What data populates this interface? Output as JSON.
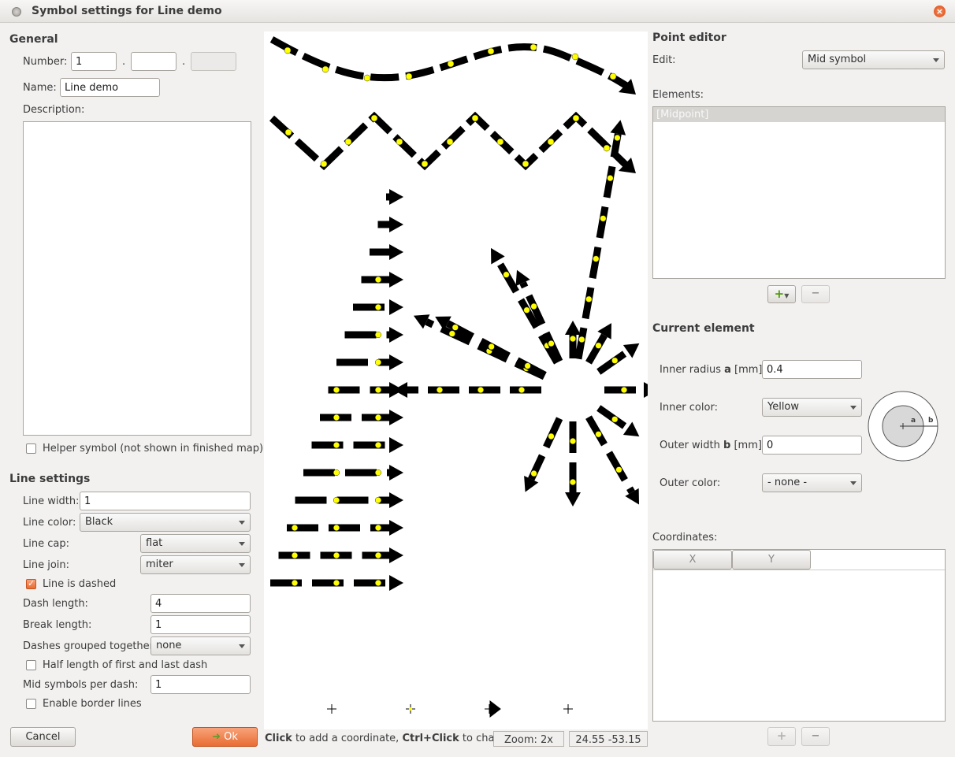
{
  "window": {
    "title": "Symbol settings for Line demo"
  },
  "general": {
    "header": "General",
    "number_label": "Number:",
    "number_1": "1",
    "number_2": "",
    "number_3": "",
    "dot": ".",
    "name_label": "Name:",
    "name_value": "Line demo",
    "description_label": "Description:",
    "description_value": "",
    "helper_label": "Helper symbol (not shown in finished map)"
  },
  "line_settings": {
    "header": "Line settings",
    "width_label": "Line width:",
    "width_value": "1",
    "color_label": "Line color:",
    "color_value": "Black",
    "cap_label": "Line cap:",
    "cap_value": "flat",
    "join_label": "Line join:",
    "join_value": "miter",
    "dashed_label": "Line is dashed",
    "dashed_checked": true,
    "dash_length_label": "Dash length:",
    "dash_length_value": "4",
    "break_length_label": "Break length:",
    "break_length_value": "1",
    "dashes_grouped_label": "Dashes grouped together:",
    "dashes_grouped_value": "none",
    "half_length_label": "Half length of first and last dash",
    "mid_symbols_label": "Mid symbols per dash:",
    "mid_symbols_value": "1",
    "border_lines_label": "Enable border lines"
  },
  "buttons": {
    "cancel": "Cancel",
    "ok": "Ok"
  },
  "status": {
    "click_bold": "Click",
    "click_text": " to add a coordinate, ",
    "ctrl_bold": "Ctrl+Click",
    "ctrl_text": " to change",
    "zoom": "Zoom: 2x",
    "coords": "24.55 -53.15"
  },
  "point_editor": {
    "header": "Point editor",
    "edit_label": "Edit:",
    "edit_value": "Mid symbol",
    "elements_label": "Elements:",
    "elements": [
      "[Midpoint]"
    ],
    "add_glyph": "+",
    "remove_glyph": "−"
  },
  "current_element": {
    "header": "Current element",
    "inner_radius_prefix": "Inner radius ",
    "inner_radius_var": "a",
    "inner_radius_suffix": " [mm]:",
    "inner_radius_value": "0.4",
    "inner_color_label": "Inner color:",
    "inner_color_value": "Yellow",
    "outer_width_prefix": "Outer width ",
    "outer_width_var": "b",
    "outer_width_suffix": " [mm]:",
    "outer_width_value": "0",
    "outer_color_label": "Outer color:",
    "outer_color_value": "- none -",
    "diagram_a": "a",
    "diagram_b": "b"
  },
  "coordinates": {
    "label": "Coordinates:",
    "col_x": "X",
    "col_y": "Y"
  },
  "colors": {
    "accent": "#e96c33",
    "symbol_yellow": "#ffff00",
    "line_black": "#000000"
  }
}
